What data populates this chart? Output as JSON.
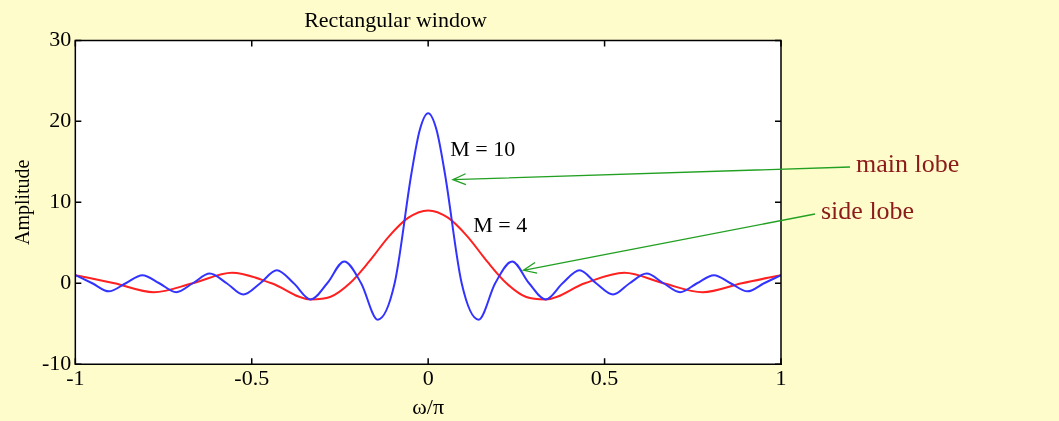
{
  "chart_data": {
    "type": "line",
    "title": "Rectangular window",
    "xlabel": "ω/π",
    "ylabel": "Amplitude",
    "xlim": [
      -1,
      1
    ],
    "xticks": [
      -1,
      -0.5,
      0,
      0.5,
      1
    ],
    "ylim": [
      -10,
      30
    ],
    "yticks": [
      -10,
      0,
      10,
      20,
      30
    ],
    "grid": false,
    "legend": false,
    "marker": "none",
    "line_style": "solid",
    "series": [
      {
        "name": "M = 10",
        "color": "#3333ff",
        "x": [
          -1,
          -0.952,
          -0.905,
          -0.857,
          -0.81,
          -0.762,
          -0.714,
          -0.667,
          -0.619,
          -0.571,
          -0.524,
          -0.476,
          -0.429,
          -0.381,
          -0.333,
          -0.286,
          -0.238,
          -0.19,
          -0.143,
          -0.095,
          -0.048,
          -0.024,
          0,
          0.024,
          0.048,
          0.095,
          0.143,
          0.19,
          0.238,
          0.286,
          0.333,
          0.381,
          0.429,
          0.476,
          0.524,
          0.571,
          0.619,
          0.667,
          0.714,
          0.762,
          0.81,
          0.857,
          0.905,
          0.952,
          1
        ],
        "values": [
          1,
          0,
          -1,
          0,
          1,
          0,
          -1.1,
          0,
          1.2,
          0,
          -1.4,
          0,
          1.6,
          0,
          -2,
          0,
          2.7,
          0,
          -4.5,
          0,
          13.4,
          18.9,
          21,
          18.9,
          13.4,
          0,
          -4.5,
          0,
          2.7,
          0,
          -2,
          0,
          1.6,
          0,
          -1.4,
          0,
          1.2,
          0,
          -1.1,
          0,
          1,
          0,
          -1,
          0,
          1
        ]
      },
      {
        "name": "M = 4",
        "color": "#ff2020",
        "x": [
          -1,
          -0.889,
          -0.778,
          -0.667,
          -0.556,
          -0.444,
          -0.333,
          -0.278,
          -0.222,
          -0.167,
          -0.111,
          -0.056,
          0,
          0.056,
          0.111,
          0.167,
          0.222,
          0.278,
          0.333,
          0.444,
          0.556,
          0.667,
          0.778,
          0.889,
          1
        ],
        "values": [
          1,
          0,
          -1.1,
          0,
          1.3,
          0,
          -2,
          -1.7,
          0,
          2.7,
          5.8,
          8.1,
          9,
          8.1,
          5.8,
          2.7,
          0,
          -1.7,
          -2,
          0,
          1.3,
          0,
          -1.1,
          0,
          1
        ]
      }
    ],
    "annotations": [
      "main lobe",
      "side lobe"
    ]
  }
}
